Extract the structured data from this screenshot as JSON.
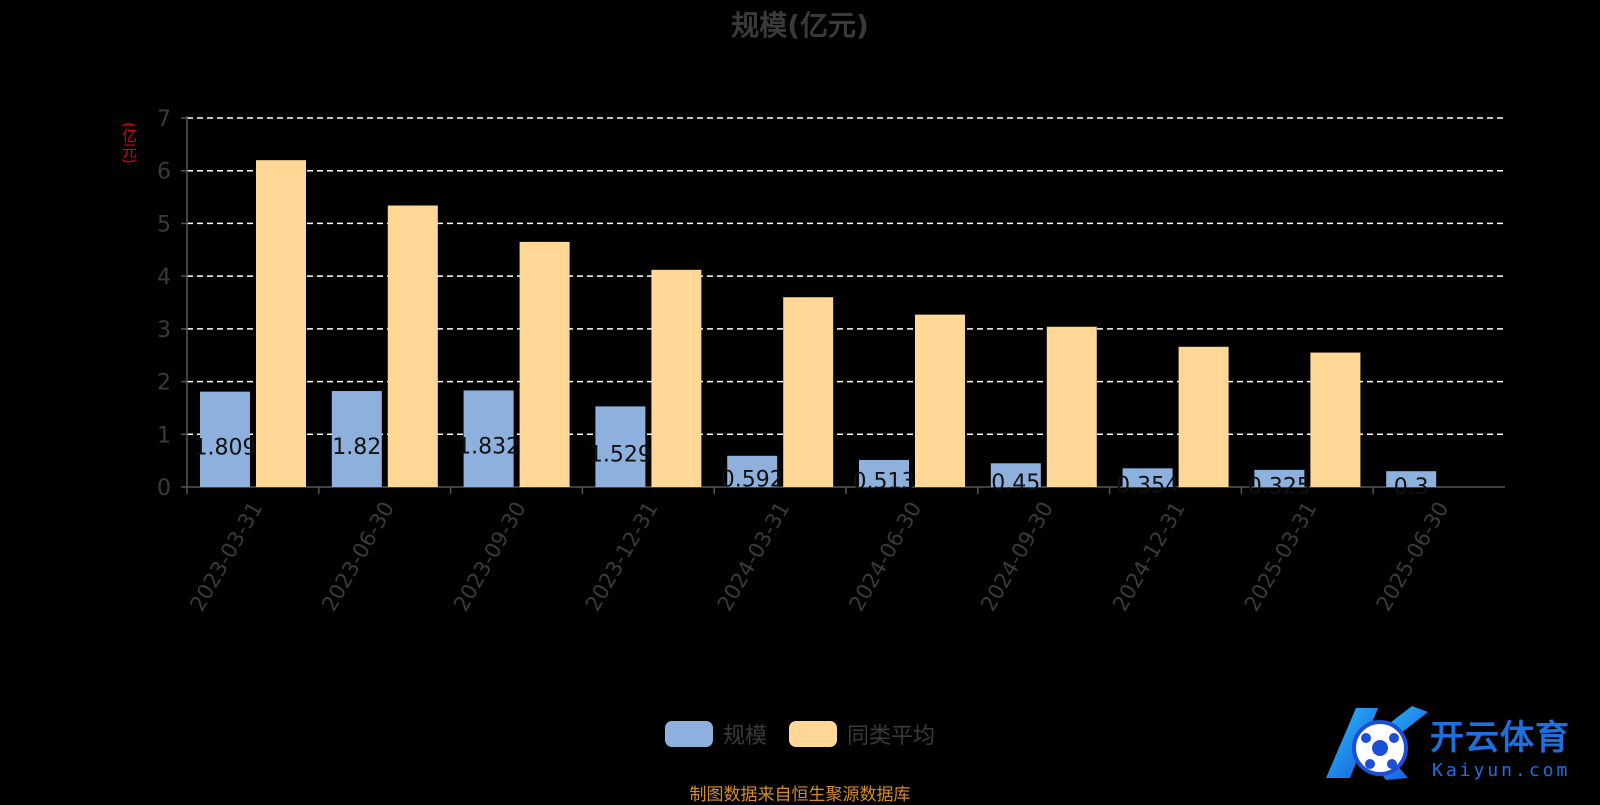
{
  "colors": {
    "series1": "#8eb0dc",
    "series2": "#ffd796",
    "grid": "#ffffff",
    "axis": "#555555",
    "text": "#3a3a3a",
    "unit": "#e00000",
    "source": "#d98b26",
    "logo": "#1e6fe0"
  },
  "chart_data": {
    "type": "bar",
    "title": "规模(亿元)",
    "ylabel": "(亿元)",
    "xlabel": "",
    "ylim": [
      0,
      7
    ],
    "yticks": [
      0,
      1,
      2,
      3,
      4,
      5,
      6,
      7
    ],
    "grid": true,
    "legend_position": "bottom",
    "categories": [
      "2023-03-31",
      "2023-06-30",
      "2023-09-30",
      "2023-12-31",
      "2024-03-31",
      "2024-06-30",
      "2024-09-30",
      "2024-12-31",
      "2025-03-31",
      "2025-06-30"
    ],
    "series": [
      {
        "name": "规模",
        "values": [
          1.809,
          1.82,
          1.832,
          1.529,
          0.592,
          0.513,
          0.45,
          0.354,
          0.325,
          0.3
        ],
        "labels": [
          "1.809",
          "1.82",
          "1.832",
          "1.529",
          "0.592",
          "0.513",
          "0.45",
          "0.354",
          "0.325",
          "0.3"
        ]
      },
      {
        "name": "同类平均",
        "values": [
          6.2,
          5.34,
          4.65,
          4.12,
          3.6,
          3.27,
          3.04,
          2.66,
          2.55,
          null
        ]
      }
    ]
  },
  "legend": {
    "items": [
      "规模",
      "同类平均"
    ]
  },
  "source": "制图数据来自恒生聚源数据库",
  "watermark": {
    "name": "开云体育",
    "domain": "Kaiyun.com"
  }
}
